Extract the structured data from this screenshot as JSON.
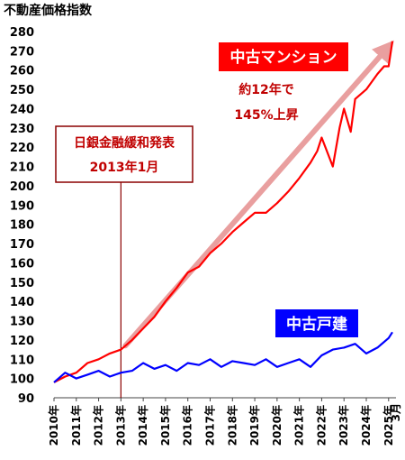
{
  "chart_data": {
    "type": "line",
    "title": "不動産価格指数",
    "ylim": [
      90,
      280
    ],
    "y_ticks": [
      90,
      100,
      110,
      120,
      130,
      140,
      150,
      160,
      170,
      180,
      190,
      200,
      210,
      220,
      230,
      240,
      250,
      260,
      270,
      280
    ],
    "x_ticks": [
      "2010年",
      "2011年",
      "2012年",
      "2013年",
      "2014年",
      "2015年",
      "2016年",
      "2017年",
      "2018年",
      "2019年",
      "2020年",
      "2021年",
      "2022年",
      "2023年",
      "2024年",
      "2025年"
    ],
    "x_end_label": "3月",
    "grid": false,
    "series": [
      {
        "name": "中古マンション",
        "color": "#ff0000",
        "x": [
          2010.0,
          2010.5,
          2011.0,
          2011.5,
          2012.0,
          2012.5,
          2013.0,
          2013.5,
          2014.0,
          2014.5,
          2015.0,
          2015.5,
          2016.0,
          2016.5,
          2017.0,
          2017.5,
          2018.0,
          2018.5,
          2019.0,
          2019.5,
          2020.0,
          2020.5,
          2021.0,
          2021.5,
          2021.8,
          2022.0,
          2022.5,
          2022.8,
          2023.0,
          2023.3,
          2023.5,
          2024.0,
          2024.5,
          2024.8,
          2025.0,
          2025.17
        ],
        "values": [
          98,
          101,
          103,
          108,
          110,
          113,
          115,
          120,
          126,
          132,
          140,
          147,
          155,
          158,
          165,
          170,
          176,
          181,
          186,
          186,
          191,
          197,
          204,
          212,
          218,
          225,
          210,
          230,
          240,
          228,
          245,
          250,
          258,
          262,
          262,
          275
        ]
      },
      {
        "name": "中古戸建",
        "color": "#0000ff",
        "x": [
          2010.0,
          2010.5,
          2011.0,
          2011.5,
          2012.0,
          2012.5,
          2013.0,
          2013.5,
          2014.0,
          2014.5,
          2015.0,
          2015.5,
          2016.0,
          2016.5,
          2017.0,
          2017.5,
          2018.0,
          2018.5,
          2019.0,
          2019.5,
          2020.0,
          2020.5,
          2021.0,
          2021.5,
          2022.0,
          2022.5,
          2023.0,
          2023.5,
          2024.0,
          2024.5,
          2025.0,
          2025.17
        ],
        "values": [
          98,
          103,
          100,
          102,
          104,
          101,
          103,
          104,
          108,
          105,
          107,
          104,
          108,
          107,
          110,
          106,
          109,
          108,
          107,
          110,
          106,
          108,
          110,
          106,
          112,
          115,
          116,
          118,
          113,
          116,
          121,
          124
        ]
      }
    ],
    "annotations": {
      "series_label_1": "中古マンション",
      "series_label_2": "中古戸建",
      "trend_line1": "約12年で",
      "trend_line2": "145%上昇",
      "event_line1": "日銀金融緩和発表",
      "event_line2": "2013年1月",
      "event_x": 2013.0,
      "arrow_from": [
        2013.2,
        117
      ],
      "arrow_to": [
        2025.17,
        275
      ]
    }
  }
}
